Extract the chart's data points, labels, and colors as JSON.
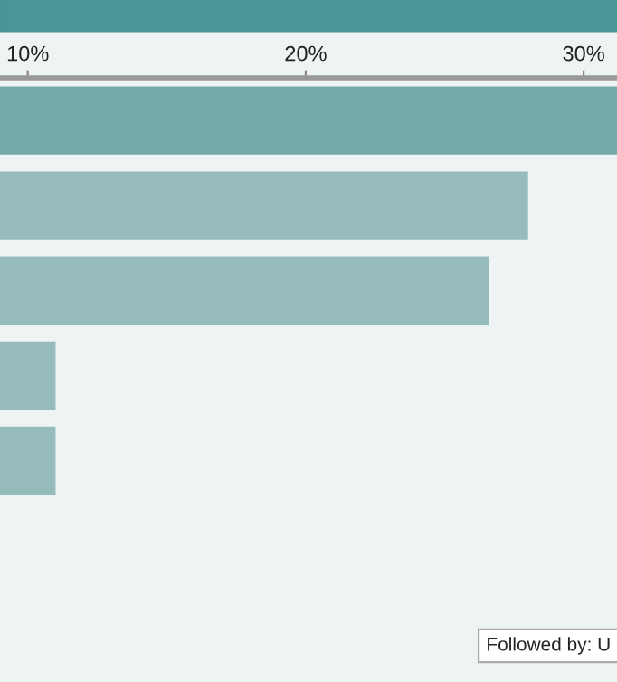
{
  "chart_data": {
    "type": "bar",
    "orientation": "horizontal",
    "categories": [
      null,
      null,
      null,
      null,
      null
    ],
    "values": [
      31.2,
      28,
      26.6,
      11,
      11
    ],
    "colors": [
      "#72a9a9",
      "#95bbbb",
      "#95bbbb",
      "#95bbbb",
      "#95bbbb"
    ],
    "xlim": [
      9,
      31.2
    ],
    "xticks": [
      {
        "value": 10,
        "label": "10%"
      },
      {
        "value": 20,
        "label": "20%"
      },
      {
        "value": 30,
        "label": "30%"
      }
    ],
    "tick_labels": "x",
    "annotations": [
      "Followed by: U"
    ]
  }
}
